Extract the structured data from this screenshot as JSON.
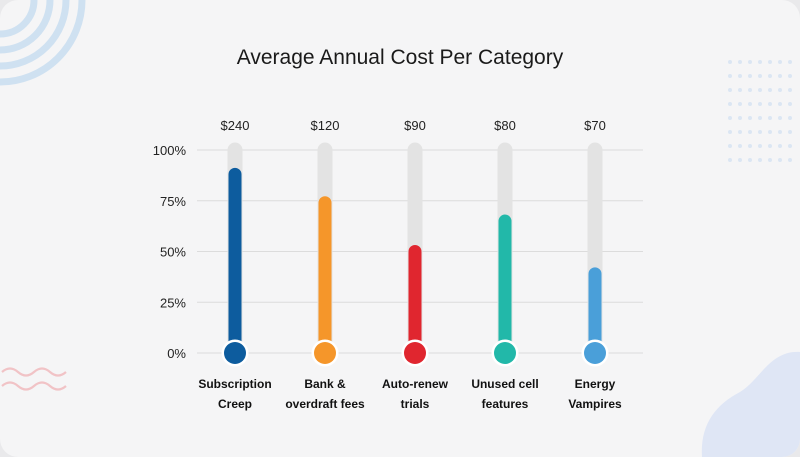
{
  "chart_data": {
    "type": "bar",
    "style": "thermometer",
    "title": "Average Annual Cost Per Category",
    "categories": [
      "Subscription Creep",
      "Bank & overdraft fees",
      "Auto-renew trials",
      "Unused cell features",
      "Energy Vampires"
    ],
    "category_lines": [
      [
        "Subscription",
        "Creep"
      ],
      [
        "Bank &",
        "overdraft fees"
      ],
      [
        "Auto-renew",
        "trials"
      ],
      [
        "Unused cell",
        "features"
      ],
      [
        "Energy",
        "Vampires"
      ]
    ],
    "values_pct": [
      88,
      74,
      50,
      65,
      39
    ],
    "cost_labels": [
      "$240",
      "$120",
      "$90",
      "$80",
      "$70"
    ],
    "colors": [
      "#0d5c9e",
      "#f5962a",
      "#e0262f",
      "#22b8a9",
      "#4a9fd9"
    ],
    "track_color": "#e3e3e3",
    "ylim": [
      0,
      100
    ],
    "yticks": [
      "100%",
      "75%",
      "50%",
      "25%",
      "0%"
    ],
    "ytick_values": [
      100,
      75,
      50,
      25,
      0
    ],
    "grid": true,
    "xlabel": "",
    "ylabel": ""
  }
}
